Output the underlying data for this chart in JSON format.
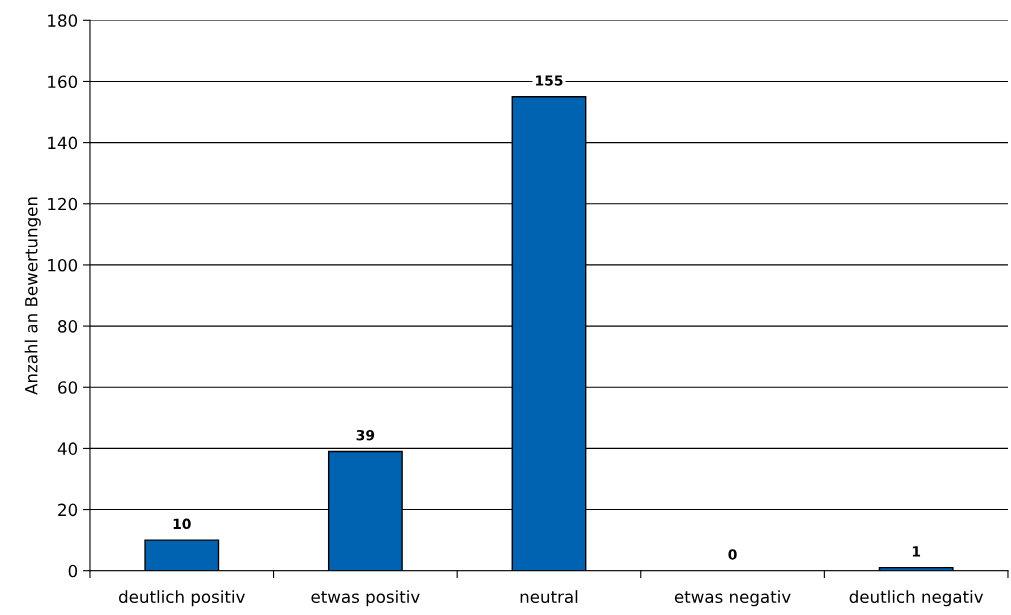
{
  "chart_data": {
    "type": "bar",
    "ylabel": "Anzahl an Bewertungen",
    "categories": [
      "deutlich positiv",
      "etwas positiv",
      "neutral",
      "etwas negativ",
      "deutlich negativ"
    ],
    "values": [
      10,
      39,
      155,
      0,
      1
    ],
    "color": "#0063b1",
    "ylim": [
      0,
      180
    ],
    "yticks": [
      0,
      20,
      40,
      60,
      80,
      100,
      120,
      140,
      160,
      180
    ],
    "grid": "y",
    "data_labels": true
  }
}
